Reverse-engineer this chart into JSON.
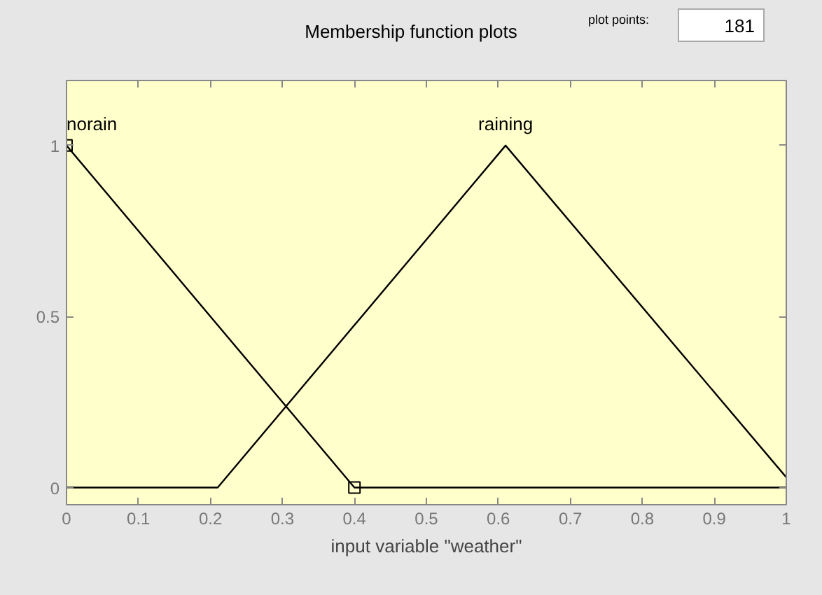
{
  "chart_data": {
    "type": "line",
    "title": "Membership function plots",
    "xlabel": "input variable \"weather\"",
    "annotations": [
      "plot points:",
      "181"
    ],
    "xlim": [
      0,
      1
    ],
    "ylim": [
      -0.05,
      1.19
    ],
    "xticks": [
      0,
      0.1,
      0.2,
      0.3,
      0.4,
      0.5,
      0.6,
      0.7,
      0.8,
      0.9,
      1
    ],
    "yticks": [
      0,
      0.5,
      1
    ],
    "grid": false,
    "line_style": "solid",
    "series": [
      {
        "name": "norain",
        "color": "#000000",
        "x": [
          0,
          0.4,
          1
        ],
        "values": [
          1,
          0,
          0
        ],
        "marker": "none"
      },
      {
        "name": "raining",
        "color": "#000000",
        "x": [
          0,
          0.21,
          0.61,
          1
        ],
        "values": [
          0,
          0,
          1,
          0.03
        ],
        "marker": "none"
      },
      {
        "type": "scatter",
        "color": "#000000",
        "x": [
          0,
          0.4
        ],
        "values": [
          1,
          0
        ],
        "marker": "square"
      }
    ]
  }
}
